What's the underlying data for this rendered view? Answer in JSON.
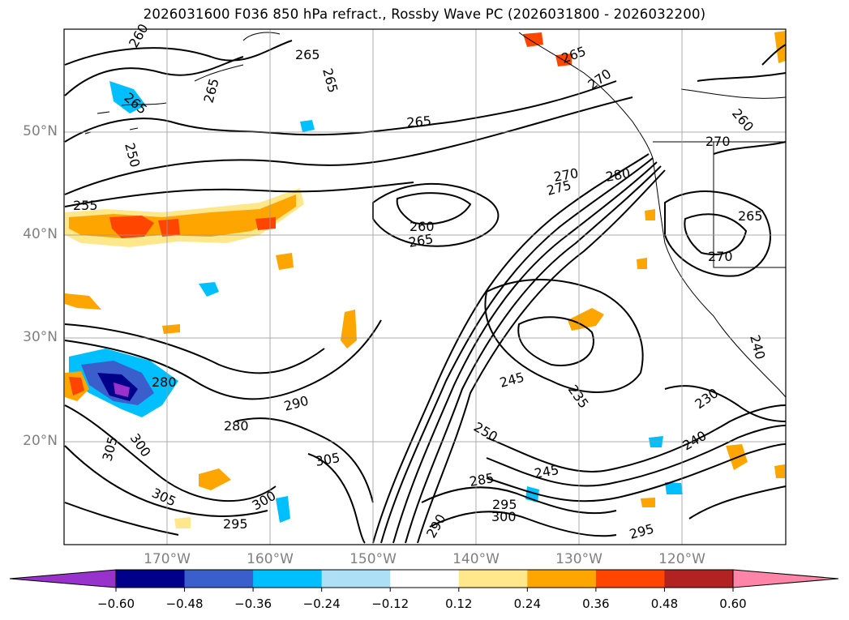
{
  "title": "2026031600 F036 850 hPa refract., Rossby Wave PC (2026031800 - 2026032200)",
  "map": {
    "lat_labels": [
      "50°N",
      "40°N",
      "30°N",
      "20°N"
    ],
    "lon_labels": [
      "170°W",
      "160°W",
      "150°W",
      "140°W",
      "130°W",
      "120°W"
    ],
    "contour_labels": [
      "260",
      "265",
      "265",
      "265",
      "265",
      "250",
      "255",
      "265",
      "260",
      "270",
      "260",
      "270",
      "275",
      "280",
      "270",
      "265",
      "270",
      "245",
      "265",
      "240",
      "235",
      "230",
      "240",
      "250",
      "245",
      "280",
      "290",
      "280",
      "305",
      "300",
      "305",
      "300",
      "295",
      "305",
      "290",
      "285",
      "295",
      "300",
      "295",
      "265"
    ],
    "colors": {
      "land_outline": "#000000",
      "contour": "#000000",
      "grid": "#808080"
    }
  },
  "colorbar": {
    "ticks": [
      "−0.60",
      "−0.48",
      "−0.36",
      "−0.24",
      "−0.12",
      "0.12",
      "0.24",
      "0.36",
      "0.48",
      "0.60"
    ],
    "colors": [
      "#9932CC",
      "#00008B",
      "#3A5FCD",
      "#00BFFF",
      "#ADDFF7",
      "#FFFFFF",
      "#FFE88C",
      "#FFA500",
      "#FF4500",
      "#B22222",
      "#FF85A8"
    ]
  }
}
